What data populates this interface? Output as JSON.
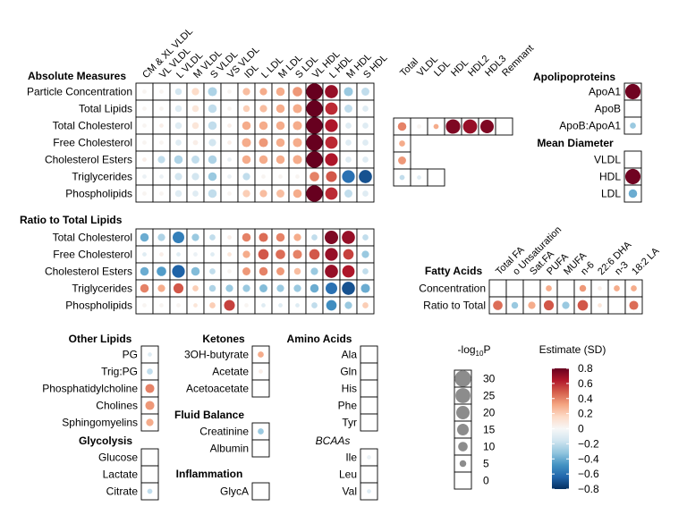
{
  "chart_data": {
    "type": "heatmap",
    "title": "",
    "subtitle": "",
    "size_legend": {
      "title_main": "-log",
      "title_sub": "10",
      "title_end": "P",
      "labels": [
        "30",
        "25",
        "20",
        "15",
        "10",
        "5",
        "0"
      ],
      "values": [
        30,
        25,
        20,
        15,
        10,
        5,
        0
      ]
    },
    "color_legend": {
      "title": "Estimate (SD)",
      "labels": [
        "0.8",
        "0.6",
        "0.4",
        "0.2",
        "0",
        "−0.2",
        "−0.4",
        "−0.6",
        "−0.8"
      ],
      "range": [
        -0.8,
        0.8
      ],
      "colors": [
        "#053061",
        "#2166ac",
        "#4393c3",
        "#92c5de",
        "#d1e5f0",
        "#f7f7f7",
        "#fddbc7",
        "#f4a582",
        "#d6604d",
        "#b2182b",
        "#67001f"
      ]
    },
    "panels": [
      {
        "id": "absolute",
        "title": "Absolute Measures",
        "columns": [
          "CM & XL VLDL",
          "VL VLDL",
          "L VLDL",
          "M VLDL",
          "S VLDL",
          "VS VLDL",
          "IDL",
          "L LDL",
          "M LDL",
          "S LDL",
          "VL HDL",
          "L HDL",
          "M HDL",
          "S HDL"
        ],
        "rows": [
          "Particle Concentration",
          "Total Lipids",
          "Total Cholesterol",
          "Free Cholesterol",
          "Cholesterol Esters",
          "Triglycerides",
          "Phospholipids"
        ],
        "estimates": [
          [
            0.02,
            0.02,
            -0.15,
            0.15,
            -0.25,
            0.02,
            0.25,
            0.3,
            0.3,
            0.35,
            0.82,
            0.7,
            -0.3,
            -0.2
          ],
          [
            0.02,
            0.02,
            -0.1,
            0.1,
            -0.2,
            0.02,
            0.2,
            0.25,
            0.3,
            0.3,
            0.82,
            0.6,
            -0.2,
            -0.1
          ],
          [
            0.02,
            0.05,
            -0.1,
            0.1,
            -0.2,
            0.05,
            0.3,
            0.3,
            0.3,
            0.3,
            0.82,
            0.65,
            -0.1,
            -0.1
          ],
          [
            0.02,
            0.02,
            -0.1,
            0.05,
            -0.15,
            0.05,
            0.3,
            0.35,
            0.3,
            0.3,
            0.8,
            0.6,
            -0.1,
            -0.1
          ],
          [
            0.05,
            -0.2,
            -0.25,
            -0.2,
            -0.25,
            -0.05,
            0.3,
            0.3,
            0.3,
            0.3,
            0.82,
            0.65,
            -0.1,
            -0.1
          ],
          [
            -0.05,
            -0.05,
            -0.15,
            -0.15,
            -0.3,
            -0.05,
            -0.2,
            0.02,
            0.02,
            0.02,
            0.4,
            0.5,
            -0.6,
            -0.7
          ],
          [
            0.02,
            0.02,
            -0.1,
            -0.1,
            -0.2,
            0.02,
            0.2,
            0.25,
            0.25,
            0.3,
            0.82,
            0.6,
            -0.2,
            -0.1
          ]
        ],
        "log10p": [
          [
            2,
            2,
            5,
            6,
            9,
            2,
            6,
            6,
            8,
            10,
            30,
            19,
            9,
            7
          ],
          [
            2,
            2,
            5,
            5,
            8,
            2,
            5,
            6,
            8,
            9,
            30,
            17,
            7,
            4
          ],
          [
            2,
            2,
            5,
            5,
            8,
            2,
            8,
            8,
            8,
            9,
            30,
            18,
            4,
            4
          ],
          [
            2,
            2,
            4,
            3,
            6,
            2,
            9,
            9,
            8,
            9,
            30,
            17,
            4,
            4
          ],
          [
            2,
            6,
            8,
            7,
            8,
            2,
            8,
            8,
            8,
            9,
            30,
            18,
            4,
            4
          ],
          [
            2,
            2,
            6,
            6,
            8,
            2,
            6,
            2,
            2,
            2,
            10,
            13,
            18,
            19
          ],
          [
            2,
            2,
            5,
            4,
            8,
            2,
            6,
            6,
            7,
            8,
            30,
            17,
            7,
            4
          ]
        ]
      },
      {
        "id": "ratio",
        "title": "Ratio to Total Lipids",
        "columns": [
          "CM & XL VLDL",
          "VL VLDL",
          "L VLDL",
          "M VLDL",
          "S VLDL",
          "VS VLDL",
          "IDL",
          "L LDL",
          "M LDL",
          "S LDL",
          "VL HDL",
          "L HDL",
          "M HDL",
          "S HDL"
        ],
        "rows": [
          "Total Cholesterol",
          "Free Cholesterol",
          "Cholesterol Esters",
          "Triglycerides",
          "Phospholipids"
        ],
        "estimates": [
          [
            -0.4,
            -0.25,
            -0.55,
            -0.3,
            -0.2,
            0.05,
            0.4,
            0.45,
            0.4,
            0.3,
            -0.2,
            0.75,
            0.7,
            -0.2
          ],
          [
            -0.1,
            0.05,
            -0.1,
            -0.05,
            -0.1,
            0.1,
            0.3,
            0.5,
            0.45,
            0.4,
            0.5,
            0.7,
            0.55,
            -0.3
          ],
          [
            -0.4,
            -0.45,
            -0.65,
            -0.35,
            -0.2,
            0.02,
            0.35,
            0.4,
            0.35,
            0.25,
            -0.3,
            0.7,
            0.65,
            -0.2
          ],
          [
            0.4,
            0.3,
            0.5,
            0.2,
            -0.25,
            -0.3,
            -0.3,
            -0.35,
            -0.3,
            -0.3,
            -0.4,
            -0.6,
            -0.7,
            -0.4
          ],
          [
            0.02,
            0.02,
            0.02,
            0.1,
            0.2,
            0.55,
            0.02,
            -0.1,
            -0.1,
            -0.1,
            -0.2,
            -0.5,
            -0.3,
            0.2
          ]
        ],
        "log10p": [
          [
            8,
            6,
            15,
            6,
            4,
            2,
            8,
            9,
            8,
            6,
            4,
            20,
            19,
            4
          ],
          [
            2,
            2,
            2,
            2,
            2,
            2,
            6,
            12,
            10,
            9,
            12,
            18,
            12,
            6
          ],
          [
            8,
            10,
            18,
            8,
            4,
            2,
            7,
            8,
            7,
            5,
            6,
            19,
            17,
            4
          ],
          [
            8,
            6,
            11,
            4,
            5,
            6,
            6,
            7,
            6,
            6,
            8,
            15,
            19,
            9
          ],
          [
            2,
            2,
            2,
            2,
            4,
            13,
            2,
            2,
            2,
            2,
            4,
            12,
            6,
            4
          ]
        ]
      },
      {
        "id": "lipoprotein_cholesterol",
        "title": "",
        "columns": [
          "Total",
          "VLDL",
          "LDL",
          "HDL",
          "HDL2",
          "HDL3",
          "Remnant"
        ],
        "rows": [
          "Total Cholesterol",
          "Free Cholesterol",
          "Cholesterol Esters",
          "Triglycerides"
        ],
        "estimates": [
          [
            0.4,
            0.02,
            0.3,
            0.75,
            0.7,
            0.75,
            0.02
          ],
          [
            0.3,
            null,
            null,
            null,
            null,
            null,
            null
          ],
          [
            0.35,
            null,
            null,
            null,
            null,
            null,
            null
          ],
          [
            -0.2,
            -0.1,
            0.02,
            null,
            null,
            null,
            null
          ]
        ],
        "log10p": [
          [
            8,
            2,
            3,
            23,
            22,
            20,
            0
          ],
          [
            4,
            null,
            null,
            null,
            null,
            null,
            null
          ],
          [
            7,
            null,
            null,
            null,
            null,
            null,
            null
          ],
          [
            3,
            2,
            0,
            null,
            null,
            null,
            null
          ]
        ]
      },
      {
        "id": "apolipoproteins",
        "title": "Apolipoproteins",
        "columns": [
          ""
        ],
        "rows": [
          "ApoA1",
          "ApoB",
          "ApoB:ApoA1"
        ],
        "estimates": [
          [
            0.78
          ],
          [
            0.02
          ],
          [
            -0.3
          ]
        ],
        "log10p": [
          [
            26
          ],
          [
            0
          ],
          [
            4
          ]
        ]
      },
      {
        "id": "mean_diameter",
        "title": "Mean Diameter",
        "columns": [
          ""
        ],
        "rows": [
          "VLDL",
          "HDL",
          "LDL"
        ],
        "estimates": [
          [
            0.02
          ],
          [
            0.78
          ],
          [
            -0.4
          ]
        ],
        "log10p": [
          [
            0
          ],
          [
            26
          ],
          [
            8
          ]
        ]
      },
      {
        "id": "fatty_acids",
        "title": "Fatty Acids",
        "columns": [
          "Total FA",
          "o Unsaturation",
          "Sat.FA",
          "PUFA",
          "MUFA",
          "n-6",
          "22:6 DHA",
          "n-3",
          "18:2 LA"
        ],
        "rows": [
          "Concentration",
          "Ratio to Total"
        ],
        "estimates": [
          [
            0.02,
            0.02,
            0.02,
            0.3,
            0.02,
            0.35,
            0.05,
            0.3,
            0.3
          ],
          [
            0.45,
            -0.3,
            0.3,
            0.5,
            -0.3,
            0.5,
            0.1,
            0.02,
            0.45
          ]
        ],
        "log10p": [
          [
            0,
            0,
            0,
            4,
            0,
            5,
            2,
            4,
            4
          ],
          [
            10,
            5,
            6,
            11,
            6,
            12,
            2,
            0,
            9
          ]
        ]
      },
      {
        "id": "other_lipids",
        "title": "Other Lipids",
        "columns": [
          ""
        ],
        "rows": [
          "PG",
          "Trig:PG",
          "Phosphatidylcholine",
          "Cholines",
          "Sphingomyelins"
        ],
        "estimates": [
          [
            -0.1
          ],
          [
            -0.2
          ],
          [
            0.4
          ],
          [
            0.35
          ],
          [
            0.3
          ]
        ],
        "log10p": [
          [
            2
          ],
          [
            4
          ],
          [
            9
          ],
          [
            9
          ],
          [
            6
          ]
        ]
      },
      {
        "id": "glycolysis",
        "title": "Glycolysis",
        "columns": [
          ""
        ],
        "rows": [
          "Glucose",
          "Lactate",
          "Citrate"
        ],
        "estimates": [
          [
            0.02
          ],
          [
            0.02
          ],
          [
            -0.2
          ]
        ],
        "log10p": [
          [
            0
          ],
          [
            0
          ],
          [
            3
          ]
        ]
      },
      {
        "id": "ketones",
        "title": "Ketones",
        "columns": [
          ""
        ],
        "rows": [
          "3OH-butyrate",
          "Acetate",
          "Acetoacetate"
        ],
        "estimates": [
          [
            0.3
          ],
          [
            0.05
          ],
          [
            0.02
          ]
        ],
        "log10p": [
          [
            4
          ],
          [
            2
          ],
          [
            0
          ]
        ]
      },
      {
        "id": "fluid_balance",
        "title": "Fluid Balance",
        "columns": [
          ""
        ],
        "rows": [
          "Creatinine",
          "Albumin"
        ],
        "estimates": [
          [
            -0.3
          ],
          [
            0.02
          ]
        ],
        "log10p": [
          [
            4
          ],
          [
            0
          ]
        ]
      },
      {
        "id": "inflammation",
        "title": "Inflammation",
        "columns": [
          ""
        ],
        "rows": [
          "GlycA"
        ],
        "estimates": [
          [
            0.02
          ]
        ],
        "log10p": [
          [
            0
          ]
        ]
      },
      {
        "id": "amino_acids",
        "title": "Amino Acids",
        "columns": [
          ""
        ],
        "rows": [
          "Ala",
          "Gln",
          "His",
          "Phe",
          "Tyr"
        ],
        "estimates": [
          [
            0.02
          ],
          [
            0.02
          ],
          [
            0.02
          ],
          [
            0.02
          ],
          [
            0.02
          ]
        ],
        "log10p": [
          [
            0
          ],
          [
            0
          ],
          [
            0
          ],
          [
            0
          ],
          [
            0
          ]
        ]
      },
      {
        "id": "bcaas",
        "title": "BCAAs",
        "columns": [
          ""
        ],
        "rows": [
          "Ile",
          "Leu",
          "Val"
        ],
        "estimates": [
          [
            -0.05
          ],
          [
            0.02
          ],
          [
            -0.1
          ]
        ],
        "log10p": [
          [
            2
          ],
          [
            0
          ],
          [
            2
          ]
        ]
      }
    ]
  }
}
